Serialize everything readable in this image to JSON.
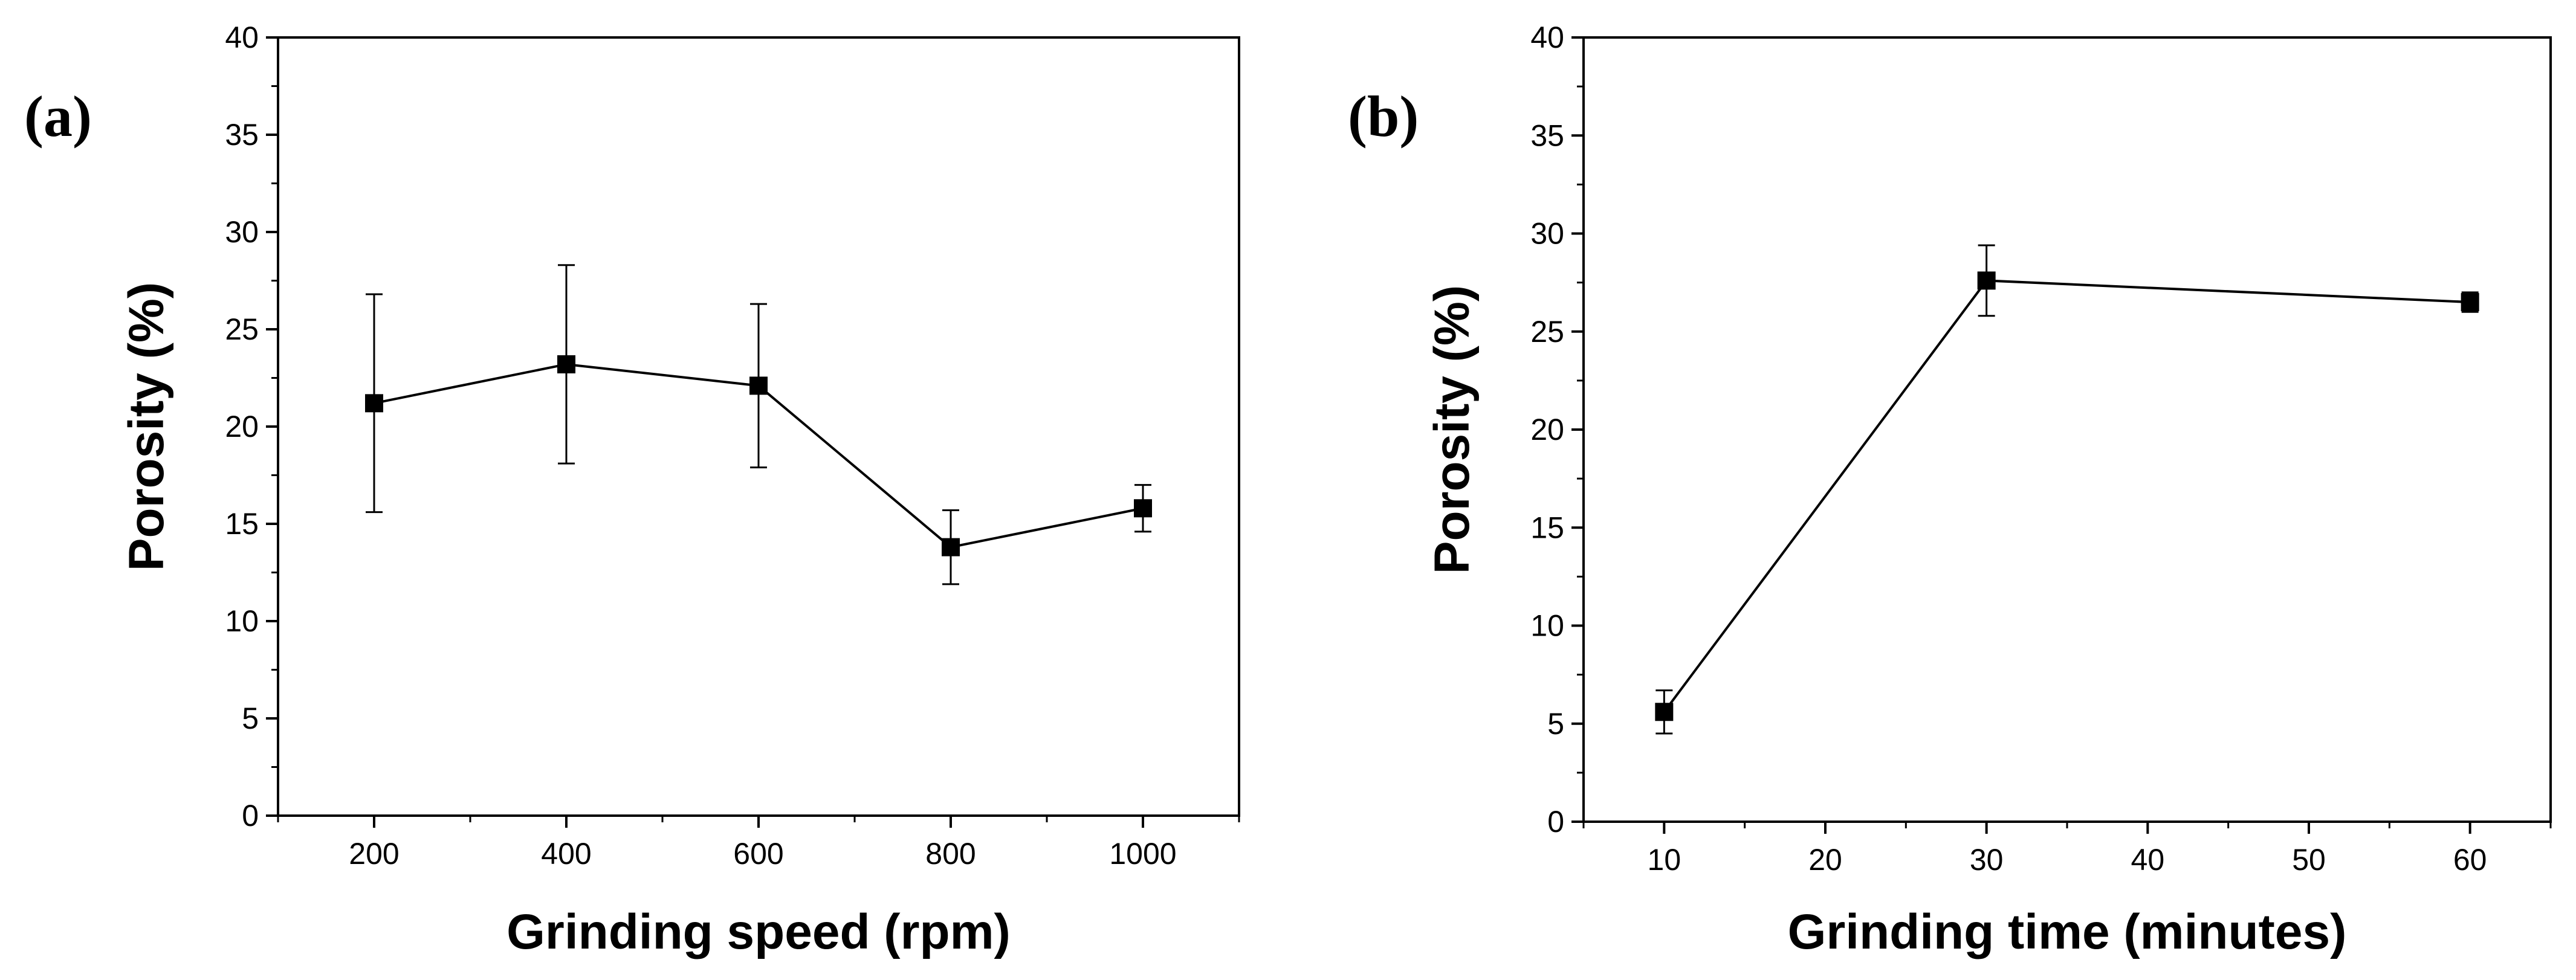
{
  "chart_data": [
    {
      "panel_label": "(a)",
      "type": "line",
      "xlabel": "Grinding speed (rpm)",
      "ylabel": "Porosity (%)",
      "x": [
        200,
        400,
        600,
        800,
        1000
      ],
      "y": [
        21.2,
        23.2,
        22.1,
        13.8,
        15.8
      ],
      "err": [
        5.6,
        5.1,
        4.2,
        1.9,
        1.2
      ],
      "xlim": [
        100,
        1100
      ],
      "ylim": [
        0,
        40
      ],
      "xticks": [
        200,
        400,
        600,
        800,
        1000
      ],
      "yticks": [
        0,
        5,
        10,
        15,
        20,
        25,
        30,
        35,
        40
      ],
      "grid": false,
      "marker": "square"
    },
    {
      "panel_label": "(b)",
      "type": "line",
      "xlabel": "Grinding time (minutes)",
      "ylabel": "Porosity (%)",
      "x": [
        10,
        30,
        60
      ],
      "y": [
        5.6,
        27.6,
        26.5
      ],
      "err": [
        1.1,
        1.8,
        0.5
      ],
      "xlim": [
        5,
        65
      ],
      "ylim": [
        0,
        40
      ],
      "xticks": [
        10,
        20,
        30,
        40,
        50,
        60
      ],
      "yticks": [
        0,
        5,
        10,
        15,
        20,
        25,
        30,
        35,
        40
      ],
      "grid": false,
      "marker": "square"
    }
  ]
}
